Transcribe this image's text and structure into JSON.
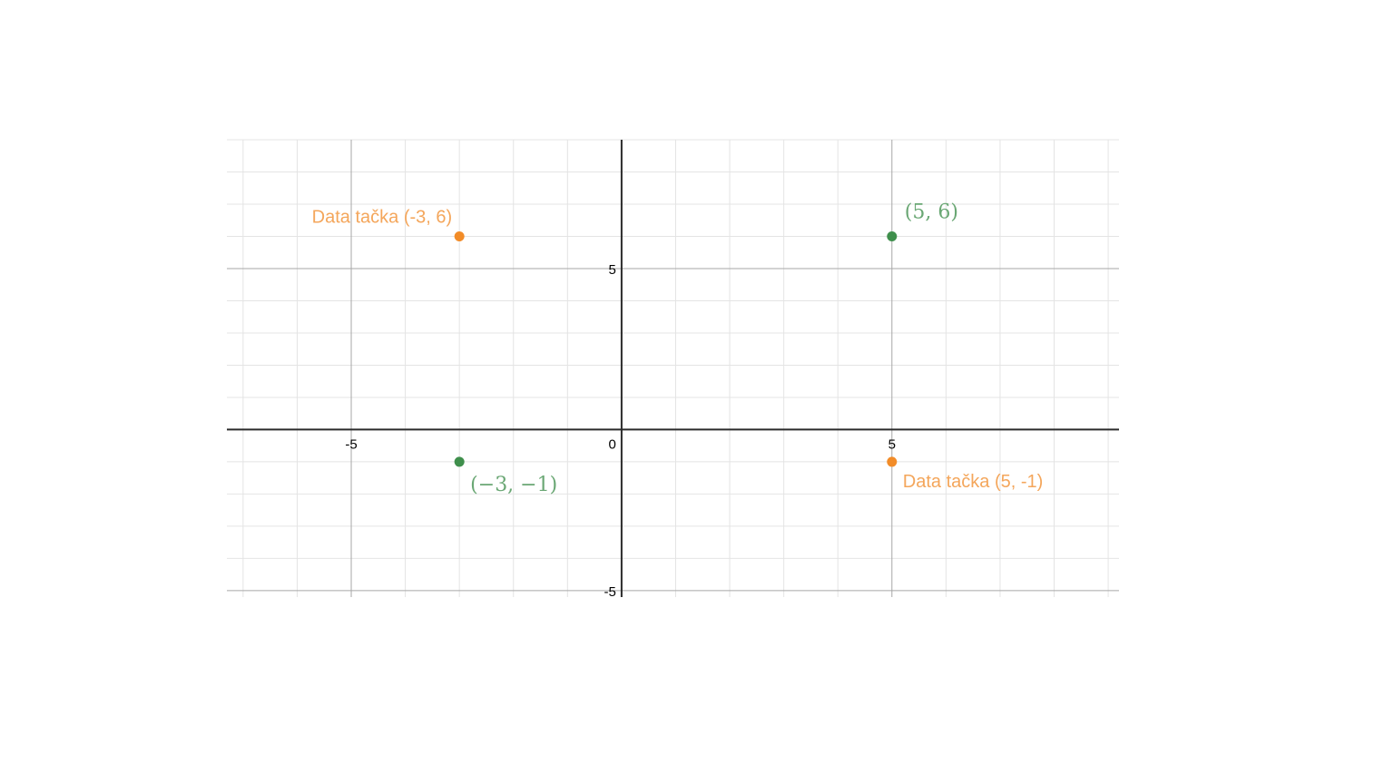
{
  "chart_data": {
    "type": "scatter",
    "xlim": [
      -7.3,
      9.2
    ],
    "ylim": [
      -5.2,
      9.0
    ],
    "grid": true,
    "major_step": 5,
    "minor_step": 1,
    "origin_label": "0",
    "x_ticks": [
      {
        "value": -5,
        "label": "-5"
      },
      {
        "value": 5,
        "label": "5"
      }
    ],
    "y_ticks": [
      {
        "value": 5,
        "label": "5"
      },
      {
        "value": -5,
        "label": "-5"
      }
    ],
    "points": [
      {
        "x": -3,
        "y": 6,
        "color": "#f28c28",
        "label": "Data tačka (-3, 6)",
        "label_style": "plain",
        "label_pos": "upper-left"
      },
      {
        "x": 5,
        "y": -1,
        "color": "#f28c28",
        "label": "Data tačka (5, -1)",
        "label_style": "plain",
        "label_pos": "lower-right"
      },
      {
        "x": 5,
        "y": 6,
        "color": "#3f8f4c",
        "label": "(5, 6)",
        "label_style": "math",
        "label_pos": "upper-right"
      },
      {
        "x": -3,
        "y": -1,
        "color": "#3f8f4c",
        "label": "(−3, −1)",
        "label_style": "math",
        "label_pos": "lower-right"
      }
    ]
  },
  "colors": {
    "orange_label": "#f4a65b",
    "green_label": "#6aa774",
    "minor_grid": "#e4e4e4",
    "major_grid": "#a7a7a7",
    "axis": "#2b2b2b"
  }
}
